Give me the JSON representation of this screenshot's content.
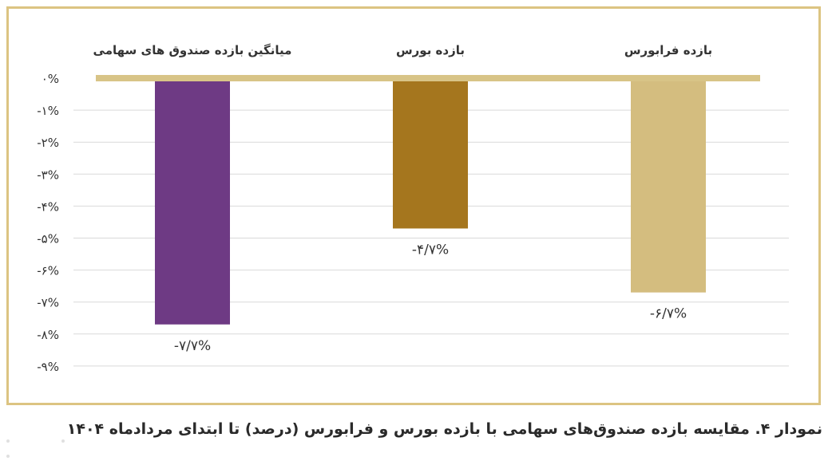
{
  "chart_data": {
    "type": "bar",
    "title": "",
    "xlabel": "",
    "ylabel": "",
    "categories": [
      "میانگین بازده صندوق های سهامی",
      "بازده بورس",
      "بازده فرابورس"
    ],
    "values": [
      -7.7,
      -4.7,
      -6.7
    ],
    "value_labels": [
      "-۷/۷%",
      "-۴/۷%",
      "-۶/۷%"
    ],
    "colors": [
      "#6e3a84",
      "#a5761e",
      "#d4bd7f"
    ],
    "baseline_color": "#d8c487",
    "ylim": [
      -9,
      0
    ],
    "yticks": [
      0,
      -1,
      -2,
      -3,
      -4,
      -5,
      -6,
      -7,
      -8,
      -9
    ],
    "ytick_labels": [
      "۰%",
      "-۱%",
      "-۲%",
      "-۳%",
      "-۴%",
      "-۵%",
      "-۶%",
      "-۷%",
      "-۸%",
      "-۹%"
    ],
    "grid": true,
    "legend": "none"
  },
  "caption": "نمودار ۴. مقایسه بازده صندوق‌های سهامی با بازده بورس و فرابورس (درصد) تا ابتدای مردادماه ۱۴۰۴"
}
